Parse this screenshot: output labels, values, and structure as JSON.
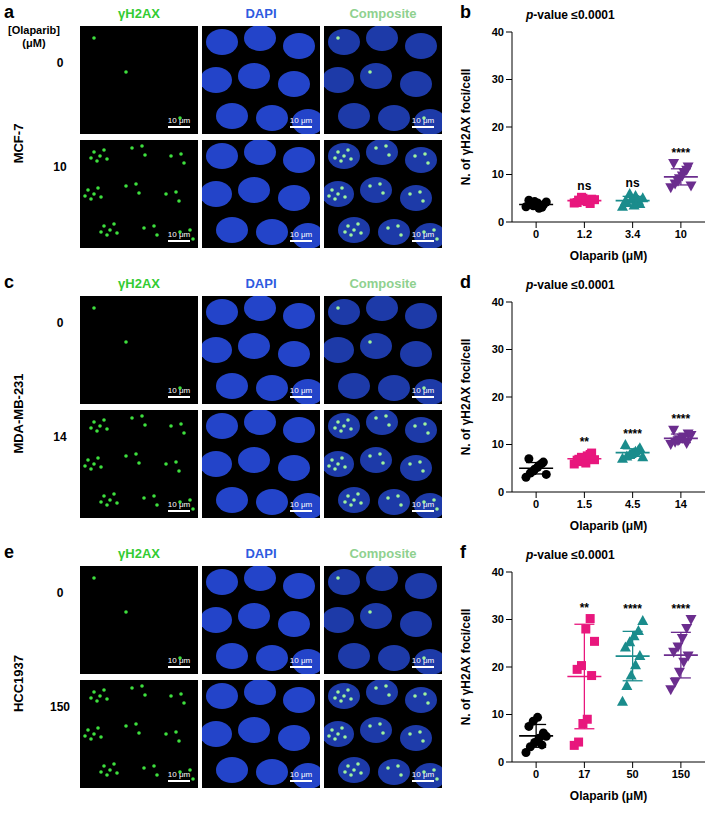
{
  "image_panels": [
    {
      "letter": "a",
      "cell_line": "MCF-7",
      "dose_header": [
        "[Olaparib]",
        "(μM)"
      ],
      "channels": [
        "γH2AX",
        "DAPI",
        "Composite"
      ],
      "channel_colors": [
        "#33cc33",
        "#2f5be0",
        "#8fd18f"
      ],
      "doses": [
        "0",
        "10"
      ],
      "scale_bar": "10 μm"
    },
    {
      "letter": "c",
      "cell_line": "MDA-MB-231",
      "channels": [
        "γH2AX",
        "DAPI",
        "Composite"
      ],
      "channel_colors": [
        "#33cc33",
        "#2f5be0",
        "#8fd18f"
      ],
      "doses": [
        "0",
        "14"
      ],
      "scale_bar": "10 μm"
    },
    {
      "letter": "e",
      "cell_line": "HCC1937",
      "channels": [
        "γH2AX",
        "DAPI",
        "Composite"
      ],
      "channel_colors": [
        "#33cc33",
        "#2f5be0",
        "#8fd18f"
      ],
      "doses": [
        "0",
        "150"
      ],
      "scale_bar": "10 μm"
    }
  ],
  "chart_data": [
    {
      "panel": "b",
      "type": "scatter",
      "title": "p-value ≤0.0001",
      "x_label": "Olaparib (μM)",
      "y_label": "N. of γH2AX foci/cell",
      "categories": [
        "0",
        "1.2",
        "3.4",
        "10"
      ],
      "ylim": [
        0,
        40
      ],
      "yticks": [
        0,
        10,
        20,
        30,
        40
      ],
      "groups": [
        {
          "color": "#000000",
          "marker": "circle",
          "values": [
            3.2,
            3.8,
            4.3,
            2.9,
            3.6,
            4.6,
            3.4,
            4.0,
            3.1,
            4.2
          ],
          "mean": 3.7,
          "sd": 0.6
        },
        {
          "color": "#e8177d",
          "marker": "square",
          "values": [
            4.0,
            4.6,
            5.0,
            4.3,
            4.8,
            4.1,
            5.2,
            4.5,
            3.9,
            4.7
          ],
          "mean": 4.5,
          "sd": 0.4,
          "annotation": "ns"
        },
        {
          "color": "#1a8c8c",
          "marker": "triangle",
          "values": [
            3.3,
            4.1,
            4.8,
            5.6,
            3.9,
            4.4,
            6.0,
            3.6,
            4.6,
            5.1
          ],
          "mean": 4.5,
          "sd": 0.9,
          "annotation": "ns"
        },
        {
          "color": "#6b2d8e",
          "marker": "triangle-down",
          "values": [
            7.2,
            8.0,
            9.1,
            10.4,
            11.6,
            12.3,
            8.6,
            9.7,
            10.9,
            7.6
          ],
          "mean": 9.5,
          "sd": 1.7,
          "annotation": "****"
        }
      ]
    },
    {
      "panel": "d",
      "type": "scatter",
      "title": "p-value ≤0.0001",
      "x_label": "Olaparib (μM)",
      "y_label": "N. of γH2AX foci/cell",
      "categories": [
        "0",
        "1.5",
        "4.5",
        "14"
      ],
      "ylim": [
        0,
        40
      ],
      "yticks": [
        0,
        10,
        20,
        30,
        40
      ],
      "groups": [
        {
          "color": "#000000",
          "marker": "circle",
          "values": [
            3.1,
            4.0,
            4.8,
            5.6,
            6.3,
            7.0,
            4.4,
            5.2,
            6.0,
            3.7
          ],
          "mean": 5.0,
          "sd": 1.2
        },
        {
          "color": "#e8177d",
          "marker": "square",
          "values": [
            5.9,
            6.4,
            7.0,
            7.6,
            8.2,
            6.7,
            7.3,
            6.1,
            7.9,
            6.8
          ],
          "mean": 7.0,
          "sd": 0.7,
          "annotation": "**"
        },
        {
          "color": "#1a8c8c",
          "marker": "triangle",
          "values": [
            7.1,
            7.6,
            8.1,
            8.6,
            9.3,
            10.0,
            7.9,
            8.3,
            8.9,
            7.4
          ],
          "mean": 8.3,
          "sd": 0.8,
          "annotation": "****"
        },
        {
          "color": "#6b2d8e",
          "marker": "triangle-down",
          "values": [
            10.0,
            10.5,
            11.0,
            11.6,
            12.2,
            13.0,
            10.8,
            11.3,
            10.2,
            11.9
          ],
          "mean": 11.3,
          "sd": 0.9,
          "annotation": "****"
        }
      ]
    },
    {
      "panel": "f",
      "type": "scatter",
      "title": "p-value ≤0.0001",
      "x_label": "Olaparib (μM)",
      "y_label": "N. of γH2AX foci/cell",
      "categories": [
        "0",
        "17",
        "50",
        "150"
      ],
      "ylim": [
        0,
        40
      ],
      "yticks": [
        0,
        10,
        20,
        30,
        40
      ],
      "groups": [
        {
          "color": "#000000",
          "marker": "circle",
          "values": [
            2.0,
            3.2,
            4.1,
            5.0,
            6.1,
            7.5,
            8.6,
            9.4,
            3.6,
            5.4
          ],
          "mean": 5.5,
          "sd": 2.4
        },
        {
          "color": "#e8177d",
          "marker": "square",
          "values": [
            3.5,
            4.2,
            8.1,
            9.0,
            18.2,
            19.5,
            20.3,
            28.0,
            30.2,
            25.4
          ],
          "mean": 18,
          "sd": 11,
          "annotation": "**"
        },
        {
          "color": "#1a8c8c",
          "marker": "triangle",
          "values": [
            12.8,
            16.1,
            18.3,
            20.5,
            22.4,
            24.2,
            25.3,
            26.6,
            27.7,
            29.8
          ],
          "mean": 22.3,
          "sd": 5.2,
          "annotation": "****"
        },
        {
          "color": "#6b2d8e",
          "marker": "triangle-down",
          "values": [
            15.2,
            16.8,
            18.9,
            21.0,
            22.3,
            23.1,
            24.2,
            26.0,
            28.1,
            30.0
          ],
          "mean": 22.5,
          "sd": 4.8,
          "annotation": "****"
        }
      ]
    }
  ]
}
